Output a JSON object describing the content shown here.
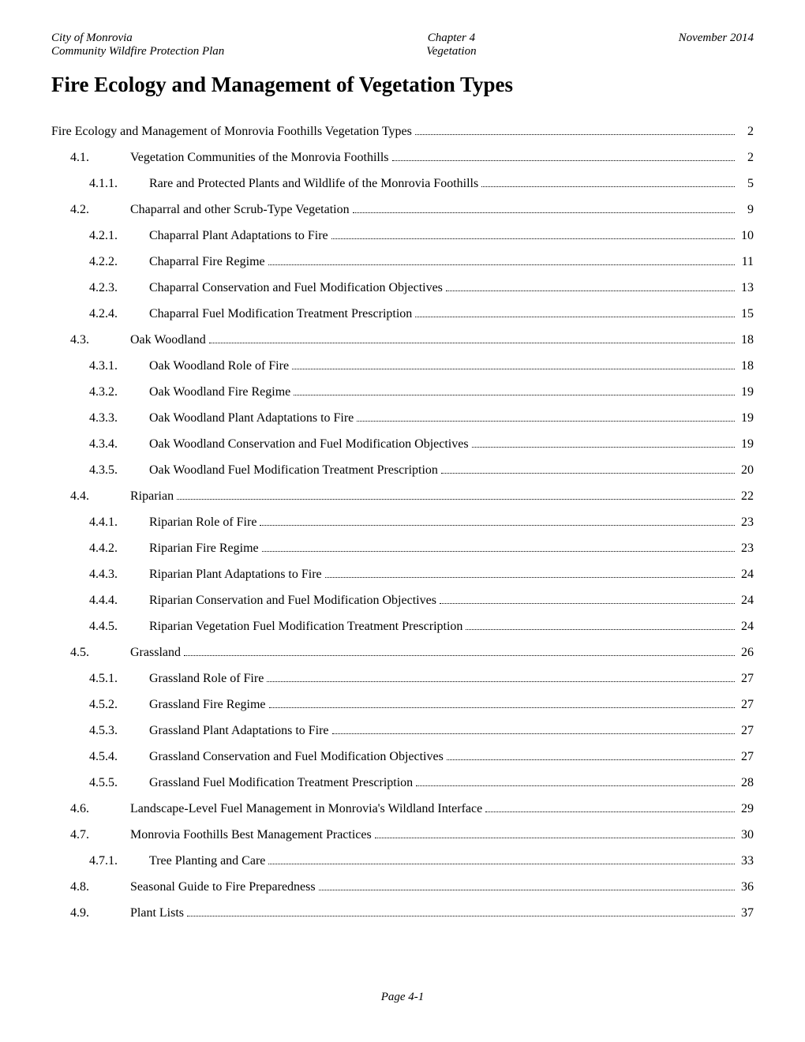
{
  "header": {
    "left_line1": "City of Monrovia",
    "left_line2": "Community Wildfire Protection Plan",
    "center_line1": "Chapter 4",
    "center_line2": "Vegetation",
    "right": "November 2014"
  },
  "title": "Fire Ecology and Management of Vegetation Types",
  "footer": "Page 4-1",
  "toc": [
    {
      "num": "",
      "title": "Fire Ecology and Management of Monrovia Foothills Vegetation Types",
      "page": "2",
      "indent": 0
    },
    {
      "num": "4.1.",
      "title": "Vegetation Communities of the Monrovia Foothills",
      "page": "2",
      "indent": 1
    },
    {
      "num": "4.1.1.",
      "title": "Rare and Protected Plants and Wildlife of the Monrovia Foothills",
      "page": "5",
      "indent": 2
    },
    {
      "num": "4.2.",
      "title": "Chaparral and other Scrub-Type Vegetation",
      "page": "9",
      "indent": 1
    },
    {
      "num": "4.2.1.",
      "title": "Chaparral Plant Adaptations to Fire",
      "page": "10",
      "indent": 2
    },
    {
      "num": "4.2.2.",
      "title": "Chaparral Fire Regime",
      "page": "11",
      "indent": 2
    },
    {
      "num": "4.2.3.",
      "title": "Chaparral Conservation and Fuel Modification Objectives",
      "page": "13",
      "indent": 2
    },
    {
      "num": "4.2.4.",
      "title": "Chaparral Fuel Modification Treatment Prescription",
      "page": "15",
      "indent": 2
    },
    {
      "num": "4.3.",
      "title": "Oak Woodland",
      "page": "18",
      "indent": 1
    },
    {
      "num": "4.3.1.",
      "title": "Oak Woodland Role of Fire",
      "page": "18",
      "indent": 2
    },
    {
      "num": "4.3.2.",
      "title": "Oak Woodland Fire Regime",
      "page": "19",
      "indent": 2
    },
    {
      "num": "4.3.3.",
      "title": "Oak Woodland Plant Adaptations to Fire",
      "page": "19",
      "indent": 2
    },
    {
      "num": "4.3.4.",
      "title": "Oak Woodland Conservation and Fuel Modification Objectives",
      "page": "19",
      "indent": 2
    },
    {
      "num": "4.3.5.",
      "title": "Oak Woodland Fuel Modification Treatment Prescription",
      "page": "20",
      "indent": 2
    },
    {
      "num": "4.4.",
      "title": "Riparian",
      "page": "22",
      "indent": 1
    },
    {
      "num": "4.4.1.",
      "title": "Riparian Role of Fire",
      "page": "23",
      "indent": 2
    },
    {
      "num": "4.4.2.",
      "title": "Riparian Fire Regime",
      "page": "23",
      "indent": 2
    },
    {
      "num": "4.4.3.",
      "title": "Riparian Plant Adaptations to Fire",
      "page": "24",
      "indent": 2
    },
    {
      "num": "4.4.4.",
      "title": "Riparian Conservation and Fuel Modification Objectives",
      "page": "24",
      "indent": 2
    },
    {
      "num": "4.4.5.",
      "title": "Riparian Vegetation Fuel Modification Treatment Prescription",
      "page": "24",
      "indent": 2
    },
    {
      "num": "4.5.",
      "title": "Grassland",
      "page": "26",
      "indent": 1
    },
    {
      "num": "4.5.1.",
      "title": "Grassland Role of Fire",
      "page": "27",
      "indent": 2
    },
    {
      "num": "4.5.2.",
      "title": "Grassland Fire Regime",
      "page": "27",
      "indent": 2
    },
    {
      "num": "4.5.3.",
      "title": "Grassland Plant Adaptations to Fire",
      "page": "27",
      "indent": 2
    },
    {
      "num": "4.5.4.",
      "title": "Grassland Conservation and Fuel Modification Objectives",
      "page": "27",
      "indent": 2
    },
    {
      "num": "4.5.5.",
      "title": "Grassland Fuel Modification Treatment Prescription",
      "page": "28",
      "indent": 2
    },
    {
      "num": "4.6.",
      "title": "Landscape-Level Fuel Management in Monrovia's Wildland Interface",
      "page": "29",
      "indent": 1
    },
    {
      "num": "4.7.",
      "title": "Monrovia Foothills Best Management Practices",
      "page": "30",
      "indent": 1
    },
    {
      "num": "4.7.1.",
      "title": "Tree Planting and Care",
      "page": "33",
      "indent": 2
    },
    {
      "num": "4.8.",
      "title": "Seasonal Guide to Fire Preparedness",
      "page": "36",
      "indent": 1
    },
    {
      "num": "4.9.",
      "title": "Plant Lists",
      "page": "37",
      "indent": 1
    }
  ]
}
